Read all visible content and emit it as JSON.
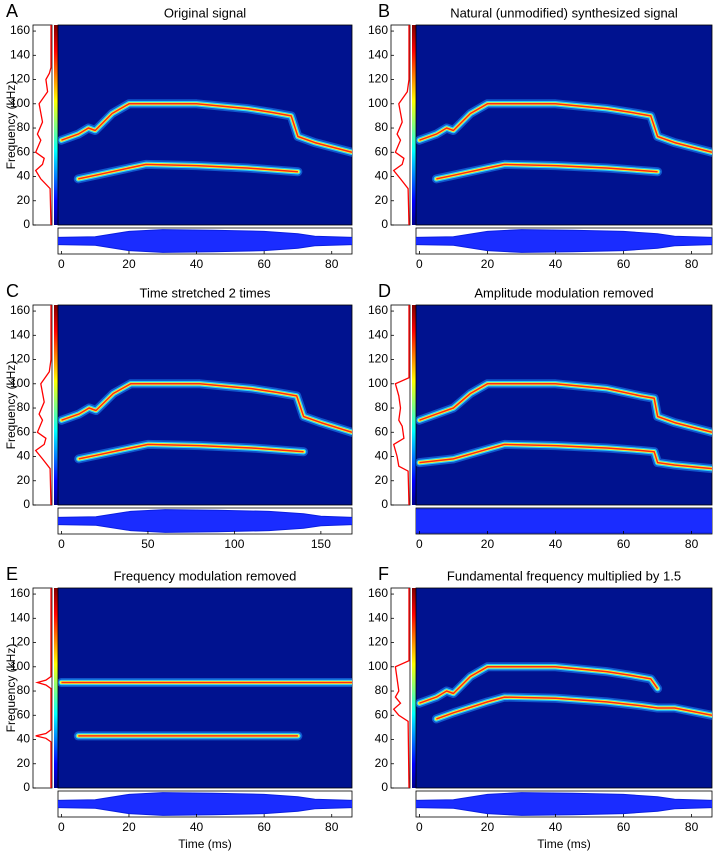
{
  "chart_data": [
    {
      "type": "spectrogram",
      "panel": "A",
      "title": "Original signal",
      "ylabel": "Frequency (kHz)",
      "xlim": [
        -1,
        86
      ],
      "xticks": [
        0,
        20,
        40,
        60,
        80
      ],
      "ylim": [
        0,
        165
      ],
      "yticks": [
        0,
        20,
        40,
        60,
        80,
        100,
        120,
        140,
        160
      ],
      "series": [
        {
          "color": "#ff2a10",
          "x": [
            5,
            10,
            20,
            25,
            40,
            55,
            65,
            70
          ],
          "values": [
            38,
            41,
            47,
            50,
            49,
            47,
            45,
            44
          ]
        },
        {
          "color": "#ff2a10",
          "x": [
            0,
            5,
            8,
            10,
            15,
            20,
            40,
            55,
            62,
            68,
            70,
            75,
            86
          ],
          "values": [
            70,
            75,
            80,
            78,
            92,
            100,
            100,
            96,
            93,
            90,
            73,
            68,
            60
          ]
        }
      ],
      "spectrum": {
        "freq": [
          0,
          30,
          38,
          45,
          50,
          55,
          60,
          70,
          75,
          85,
          100,
          110,
          120,
          125,
          130,
          165
        ],
        "level": [
          0,
          0.05,
          0.6,
          0.9,
          0.5,
          0.4,
          0.9,
          0.6,
          0.8,
          0.5,
          0.7,
          0.2,
          0.3,
          0.1,
          0,
          0
        ]
      },
      "envelope": {
        "x": [
          -1,
          10,
          20,
          30,
          45,
          60,
          70,
          75,
          86
        ],
        "values": [
          0.3,
          0.35,
          0.8,
          0.95,
          0.9,
          0.8,
          0.6,
          0.4,
          0.3
        ]
      }
    },
    {
      "type": "spectrogram",
      "panel": "B",
      "title": "Natural (unmodified) synthesized signal",
      "xlim": [
        -1,
        86
      ],
      "xticks": [
        0,
        20,
        40,
        60,
        80
      ],
      "ylim": [
        0,
        165
      ],
      "yticks": [
        0,
        20,
        40,
        60,
        80,
        100,
        120,
        140,
        160
      ],
      "series": [
        {
          "color": "#ff2a10",
          "x": [
            5,
            10,
            20,
            25,
            40,
            55,
            65,
            70
          ],
          "values": [
            38,
            41,
            47,
            50,
            49,
            47,
            45,
            44
          ]
        },
        {
          "color": "#ff2a10",
          "x": [
            0,
            5,
            8,
            10,
            15,
            20,
            40,
            55,
            62,
            68,
            70,
            75,
            86
          ],
          "values": [
            70,
            75,
            80,
            78,
            92,
            100,
            100,
            96,
            93,
            90,
            73,
            68,
            60
          ]
        }
      ],
      "spectrum": {
        "freq": [
          0,
          30,
          38,
          45,
          50,
          55,
          60,
          70,
          75,
          85,
          100,
          110,
          120,
          165
        ],
        "level": [
          0,
          0.05,
          0.5,
          0.9,
          0.4,
          0.3,
          0.8,
          0.5,
          0.7,
          0.4,
          0.6,
          0.1,
          0,
          0
        ]
      },
      "envelope": {
        "x": [
          -1,
          10,
          20,
          30,
          45,
          60,
          70,
          75,
          86
        ],
        "values": [
          0.3,
          0.35,
          0.8,
          0.95,
          0.9,
          0.8,
          0.6,
          0.4,
          0.3
        ]
      }
    },
    {
      "type": "spectrogram",
      "panel": "C",
      "title": "Time stretched 2 times",
      "ylabel": "Frequency (kHz)",
      "xlim": [
        -2,
        168
      ],
      "xticks": [
        0,
        50,
        100,
        150
      ],
      "ylim": [
        0,
        165
      ],
      "yticks": [
        0,
        20,
        40,
        60,
        80,
        100,
        120,
        140,
        160
      ],
      "series": [
        {
          "color": "#ff2a10",
          "x": [
            10,
            20,
            40,
            50,
            80,
            110,
            130,
            140
          ],
          "values": [
            38,
            41,
            47,
            50,
            49,
            47,
            45,
            44
          ]
        },
        {
          "color": "#ff2a10",
          "x": [
            0,
            10,
            16,
            20,
            30,
            40,
            80,
            110,
            124,
            136,
            140,
            150,
            168
          ],
          "values": [
            70,
            75,
            80,
            78,
            92,
            100,
            100,
            96,
            93,
            90,
            73,
            68,
            60
          ]
        }
      ],
      "spectrum": {
        "freq": [
          0,
          30,
          38,
          45,
          50,
          55,
          60,
          70,
          75,
          85,
          100,
          110,
          120,
          165
        ],
        "level": [
          0,
          0.05,
          0.5,
          0.9,
          0.4,
          0.3,
          0.8,
          0.5,
          0.7,
          0.4,
          0.6,
          0.1,
          0,
          0
        ]
      },
      "envelope": {
        "x": [
          -2,
          20,
          40,
          60,
          90,
          120,
          140,
          150,
          168
        ],
        "values": [
          0.3,
          0.35,
          0.8,
          0.95,
          0.9,
          0.8,
          0.6,
          0.4,
          0.3
        ]
      }
    },
    {
      "type": "spectrogram",
      "panel": "D",
      "title": "Amplitude modulation removed",
      "xlim": [
        -1,
        86
      ],
      "xticks": [
        0,
        20,
        40,
        60,
        80
      ],
      "ylim": [
        0,
        165
      ],
      "yticks": [
        0,
        20,
        40,
        60,
        80,
        100,
        120,
        140,
        160
      ],
      "series": [
        {
          "color": "#ff2a10",
          "x": [
            0,
            10,
            20,
            25,
            40,
            55,
            65,
            69,
            70,
            75,
            86
          ],
          "values": [
            35,
            38,
            46,
            50,
            49,
            47,
            45,
            44,
            35,
            33,
            30
          ]
        },
        {
          "color": "#ff2a10",
          "x": [
            0,
            5,
            10,
            15,
            20,
            40,
            55,
            65,
            69,
            70,
            75,
            86
          ],
          "values": [
            70,
            75,
            80,
            92,
            100,
            100,
            96,
            90,
            88,
            73,
            68,
            60
          ]
        }
      ],
      "spectrum": {
        "freq": [
          0,
          28,
          32,
          40,
          50,
          55,
          65,
          70,
          80,
          90,
          100,
          105,
          165
        ],
        "level": [
          0,
          0.05,
          0.6,
          0.7,
          0.9,
          0.3,
          0.4,
          0.6,
          0.5,
          0.6,
          0.8,
          0,
          0
        ]
      },
      "envelope": {
        "x": [
          -1,
          86
        ],
        "values": [
          1,
          1
        ]
      }
    },
    {
      "type": "spectrogram",
      "panel": "E",
      "title": "Frequency modulation removed",
      "ylabel": "Frequency (kHz)",
      "xlabel": "Time (ms)",
      "xlim": [
        -1,
        86
      ],
      "xticks": [
        0,
        20,
        40,
        60,
        80
      ],
      "ylim": [
        0,
        165
      ],
      "yticks": [
        0,
        20,
        40,
        60,
        80,
        100,
        120,
        140,
        160
      ],
      "series": [
        {
          "color": "#ff2a10",
          "x": [
            5,
            70
          ],
          "values": [
            43,
            43
          ]
        },
        {
          "color": "#ff2a10",
          "x": [
            0,
            86
          ],
          "values": [
            87,
            87
          ]
        }
      ],
      "spectrum": {
        "freq": [
          0,
          38,
          41,
          43,
          45,
          48,
          82,
          85,
          87,
          89,
          92,
          165
        ],
        "level": [
          0,
          0,
          0.3,
          0.9,
          0.3,
          0,
          0,
          0.3,
          0.8,
          0.3,
          0,
          0
        ]
      },
      "envelope": {
        "x": [
          -1,
          10,
          20,
          30,
          45,
          60,
          70,
          75,
          86
        ],
        "values": [
          0.3,
          0.35,
          0.8,
          0.95,
          0.9,
          0.8,
          0.6,
          0.4,
          0.3
        ]
      }
    },
    {
      "type": "spectrogram",
      "panel": "F",
      "title": "Fundamental frequency multiplied by 1.5",
      "xlabel": "Time (ms)",
      "xlim": [
        -1,
        86
      ],
      "xticks": [
        0,
        20,
        40,
        60,
        80
      ],
      "ylim": [
        0,
        165
      ],
      "yticks": [
        0,
        20,
        40,
        60,
        80,
        100,
        120,
        140,
        160
      ],
      "series": [
        {
          "color": "#ff2a10",
          "x": [
            5,
            10,
            20,
            25,
            40,
            55,
            65,
            70,
            75,
            86
          ],
          "values": [
            57,
            62,
            71,
            75,
            74,
            71,
            68,
            66,
            66,
            60
          ]
        },
        {
          "color": "#ff2a10",
          "x": [
            0,
            5,
            8,
            10,
            15,
            20,
            40,
            55,
            62,
            68,
            70
          ],
          "values": [
            70,
            75,
            80,
            78,
            92,
            100,
            100,
            96,
            93,
            90,
            82
          ]
        }
      ],
      "spectrum": {
        "freq": [
          0,
          55,
          60,
          65,
          70,
          75,
          80,
          90,
          100,
          105,
          165
        ],
        "level": [
          0,
          0.05,
          0.6,
          0.9,
          0.5,
          0.8,
          0.6,
          0.7,
          0.8,
          0,
          0
        ]
      },
      "envelope": {
        "x": [
          -1,
          10,
          20,
          30,
          45,
          60,
          70,
          75,
          86
        ],
        "values": [
          0.3,
          0.35,
          0.8,
          0.95,
          0.9,
          0.8,
          0.6,
          0.4,
          0.3
        ]
      }
    }
  ]
}
